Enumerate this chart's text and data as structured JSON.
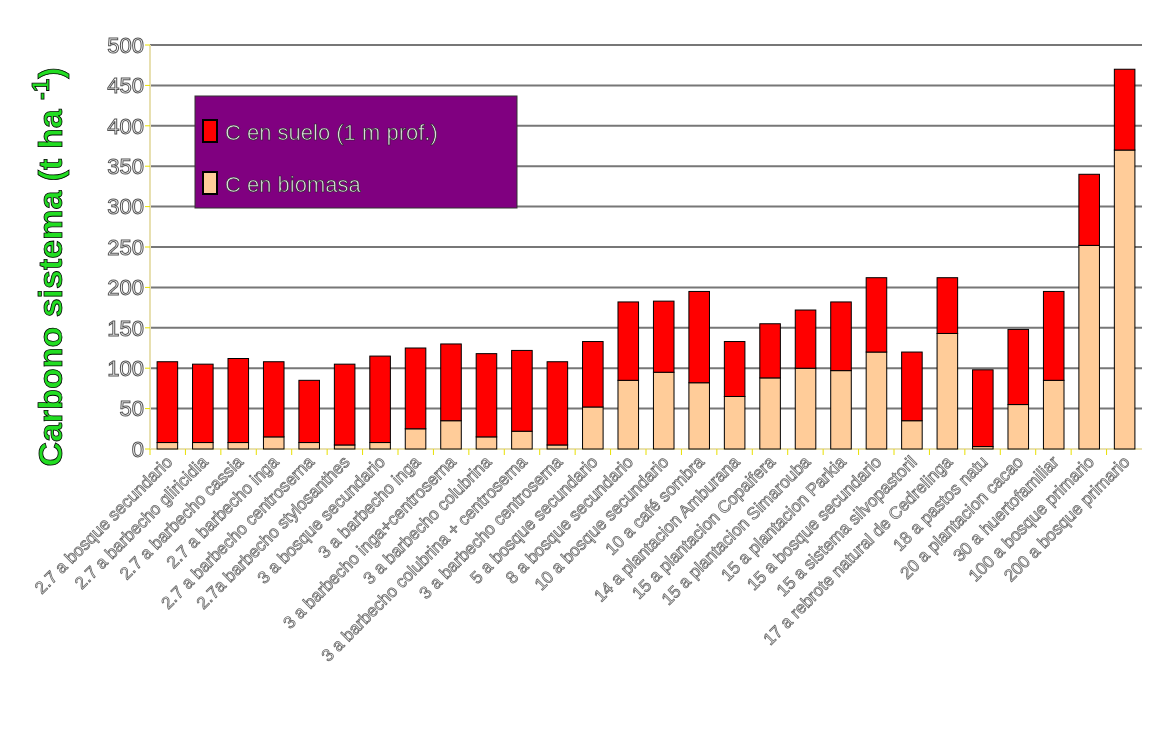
{
  "chart_data": {
    "type": "bar",
    "stacked": true,
    "ylabel": "Carbono sistema  (t ha $^{-1}$)",
    "categories": [
      "2.7 a bosque secundario",
      "2.7 a barbecho gliricidia",
      "2.7 a barbecho cassia",
      "2.7 a barbecho inga",
      "2.7 a barbecho centroserna",
      "2.7a barbecho stylosanthes",
      "3 a bosque secundario",
      "3 a barbecho inga",
      "3 a barbecho inga+centroserna",
      "3 a barbecho colubrina",
      "3 a barbecho colubrina + centroserna",
      "3 a barbecho centroserna",
      "5 a bosque secundario",
      "8 a bosque secundario",
      "10 a bosque secundario",
      "10 a café sombra",
      "14 a plantacion Amburana",
      "15 a plantacion Copaifera",
      "15 a plantacion Simarouba",
      "15 a plantacion Parkia",
      "15 a bosque secundario",
      "15 a sistema silvopastoril",
      "17 a rebrote natural de Cedrelinga",
      "18 a pastos natu",
      "20 a plantacion cacao",
      "30 a huertofamiliar",
      "100 a bosque primario",
      "200 a bosque primario"
    ],
    "series": [
      {
        "name": "C en biomasa",
        "color": "#ffcc99",
        "values": [
          8,
          8,
          8,
          15,
          8,
          5,
          8,
          25,
          35,
          15,
          22,
          5,
          52,
          85,
          95,
          82,
          65,
          88,
          100,
          97,
          120,
          35,
          143,
          3,
          55,
          85,
          252,
          370
        ]
      },
      {
        "name": "C en suelo (1 m prof.)",
        "color": "#ff0000",
        "values": [
          100,
          97,
          104,
          93,
          77,
          100,
          107,
          100,
          95,
          103,
          100,
          103,
          81,
          97,
          88,
          113,
          68,
          67,
          72,
          85,
          92,
          85,
          69,
          95,
          93,
          110,
          88,
          100
        ]
      }
    ],
    "ylim": [
      0,
      500
    ],
    "yticks": [
      0,
      50,
      100,
      150,
      200,
      250,
      300,
      350,
      400,
      450,
      500
    ],
    "grid": "y",
    "legend": "top left"
  }
}
